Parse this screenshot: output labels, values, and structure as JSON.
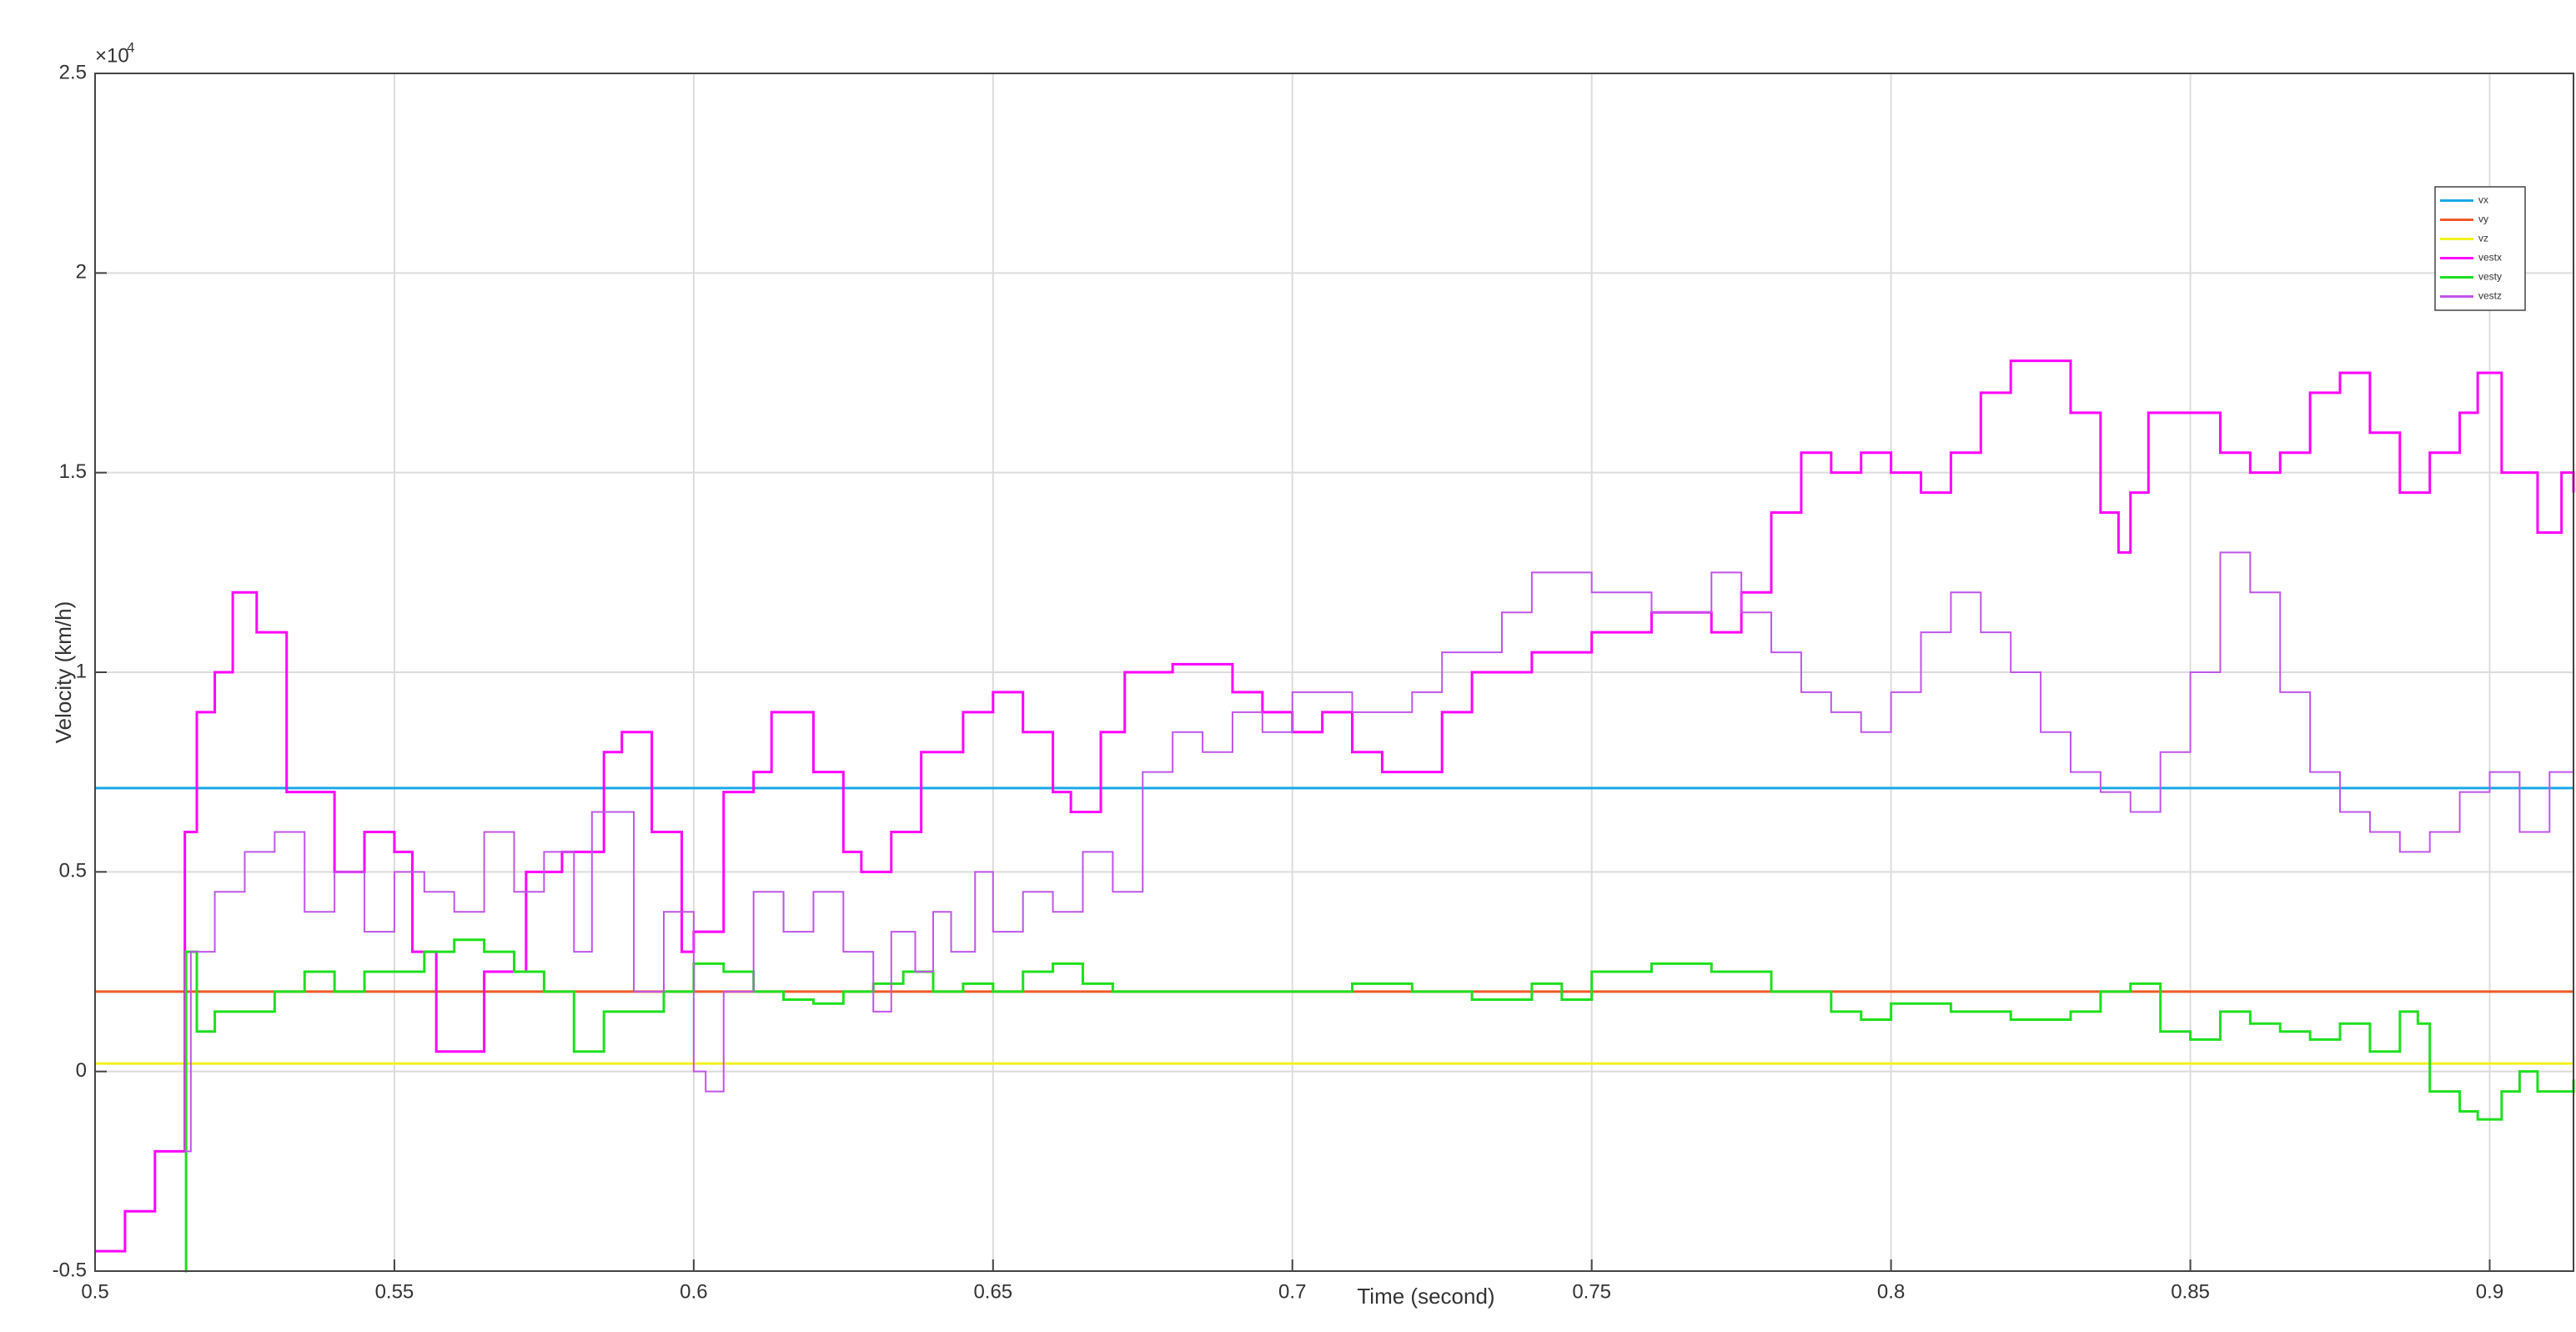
{
  "chart_data": {
    "type": "line",
    "stairs": true,
    "grid": true,
    "legend": "upper-right",
    "xlabel": "Time (second)",
    "ylabel": "Velocity (km/h)",
    "y_exponent_base": "×10",
    "y_exponent_power": 4,
    "xlim": [
      0.5,
      0.914
    ],
    "xticks": [
      0.5,
      0.55,
      0.6,
      0.65,
      0.7,
      0.75,
      0.8,
      0.85,
      0.9
    ],
    "ylim": [
      -0.5,
      2.5
    ],
    "yticks": [
      -0.5,
      0,
      0.5,
      1,
      1.5,
      2,
      2.5
    ],
    "series": [
      {
        "name": "vx",
        "color": "#1aa8e8",
        "width": 3,
        "x": [
          0.5,
          0.914
        ],
        "values": [
          0.71,
          0.71
        ]
      },
      {
        "name": "vy",
        "color": "#f05a28",
        "width": 3,
        "x": [
          0.5,
          0.914
        ],
        "values": [
          0.2,
          0.2
        ]
      },
      {
        "name": "vz",
        "color": "#f2f21e",
        "width": 3,
        "x": [
          0.5,
          0.914
        ],
        "values": [
          0.02,
          0.02
        ]
      },
      {
        "name": "vestx",
        "color": "#ff00ff",
        "width": 3,
        "x": [
          0.5,
          0.505,
          0.51,
          0.515,
          0.517,
          0.52,
          0.523,
          0.527,
          0.532,
          0.54,
          0.545,
          0.55,
          0.553,
          0.557,
          0.56,
          0.565,
          0.572,
          0.578,
          0.585,
          0.588,
          0.593,
          0.598,
          0.6,
          0.605,
          0.61,
          0.613,
          0.62,
          0.625,
          0.628,
          0.633,
          0.638,
          0.645,
          0.65,
          0.655,
          0.66,
          0.663,
          0.668,
          0.672,
          0.68,
          0.69,
          0.695,
          0.7,
          0.705,
          0.71,
          0.715,
          0.725,
          0.73,
          0.74,
          0.75,
          0.76,
          0.77,
          0.775,
          0.78,
          0.785,
          0.79,
          0.795,
          0.8,
          0.805,
          0.81,
          0.815,
          0.82,
          0.825,
          0.83,
          0.835,
          0.838,
          0.84,
          0.843,
          0.85,
          0.855,
          0.86,
          0.865,
          0.87,
          0.875,
          0.88,
          0.885,
          0.89,
          0.895,
          0.898,
          0.902,
          0.905,
          0.908,
          0.912,
          0.914
        ],
        "values": [
          -0.45,
          -0.35,
          -0.2,
          0.6,
          0.9,
          1.0,
          1.2,
          1.1,
          0.7,
          0.5,
          0.6,
          0.55,
          0.3,
          0.05,
          0.05,
          0.25,
          0.5,
          0.55,
          0.8,
          0.85,
          0.6,
          0.3,
          0.35,
          0.7,
          0.75,
          0.9,
          0.75,
          0.55,
          0.5,
          0.6,
          0.8,
          0.9,
          0.95,
          0.85,
          0.7,
          0.65,
          0.85,
          1.0,
          1.02,
          0.95,
          0.9,
          0.85,
          0.9,
          0.8,
          0.75,
          0.9,
          1.0,
          1.05,
          1.1,
          1.15,
          1.1,
          1.2,
          1.4,
          1.55,
          1.5,
          1.55,
          1.5,
          1.45,
          1.55,
          1.7,
          1.78,
          1.78,
          1.65,
          1.4,
          1.3,
          1.45,
          1.65,
          1.65,
          1.55,
          1.5,
          1.55,
          1.7,
          1.75,
          1.6,
          1.45,
          1.55,
          1.65,
          1.75,
          1.5,
          1.5,
          1.35,
          1.5,
          1.45
        ]
      },
      {
        "name": "vesty",
        "color": "#1ee01e",
        "width": 3,
        "x": [
          0.515,
          0.5152,
          0.517,
          0.52,
          0.525,
          0.53,
          0.535,
          0.54,
          0.545,
          0.55,
          0.555,
          0.56,
          0.565,
          0.57,
          0.575,
          0.58,
          0.585,
          0.59,
          0.595,
          0.6,
          0.605,
          0.61,
          0.615,
          0.62,
          0.625,
          0.63,
          0.635,
          0.64,
          0.645,
          0.65,
          0.655,
          0.66,
          0.665,
          0.67,
          0.7,
          0.71,
          0.72,
          0.73,
          0.74,
          0.745,
          0.75,
          0.76,
          0.77,
          0.78,
          0.79,
          0.795,
          0.8,
          0.81,
          0.82,
          0.83,
          0.835,
          0.84,
          0.845,
          0.85,
          0.855,
          0.86,
          0.865,
          0.87,
          0.875,
          0.88,
          0.885,
          0.888,
          0.89,
          0.895,
          0.898,
          0.902,
          0.905,
          0.908,
          0.914
        ],
        "values": [
          -0.5,
          0.3,
          0.1,
          0.15,
          0.15,
          0.2,
          0.25,
          0.2,
          0.25,
          0.25,
          0.3,
          0.33,
          0.3,
          0.25,
          0.2,
          0.05,
          0.15,
          0.15,
          0.2,
          0.27,
          0.25,
          0.2,
          0.18,
          0.17,
          0.2,
          0.22,
          0.25,
          0.2,
          0.22,
          0.2,
          0.25,
          0.27,
          0.22,
          0.2,
          0.2,
          0.22,
          0.2,
          0.18,
          0.22,
          0.18,
          0.25,
          0.27,
          0.25,
          0.2,
          0.15,
          0.13,
          0.17,
          0.15,
          0.13,
          0.15,
          0.2,
          0.22,
          0.1,
          0.08,
          0.15,
          0.12,
          0.1,
          0.08,
          0.12,
          0.05,
          0.15,
          0.12,
          -0.05,
          -0.1,
          -0.12,
          -0.05,
          0.0,
          -0.05,
          -0.02
        ]
      },
      {
        "name": "vestz",
        "color": "#c055e8",
        "width": 2,
        "x": [
          0.515,
          0.516,
          0.52,
          0.525,
          0.53,
          0.535,
          0.54,
          0.545,
          0.55,
          0.555,
          0.56,
          0.565,
          0.57,
          0.575,
          0.58,
          0.583,
          0.59,
          0.595,
          0.6,
          0.602,
          0.605,
          0.61,
          0.615,
          0.62,
          0.625,
          0.63,
          0.633,
          0.637,
          0.64,
          0.643,
          0.647,
          0.65,
          0.655,
          0.66,
          0.665,
          0.67,
          0.675,
          0.68,
          0.685,
          0.69,
          0.695,
          0.7,
          0.71,
          0.72,
          0.725,
          0.735,
          0.74,
          0.75,
          0.76,
          0.77,
          0.775,
          0.78,
          0.785,
          0.79,
          0.795,
          0.8,
          0.805,
          0.81,
          0.815,
          0.82,
          0.825,
          0.83,
          0.835,
          0.84,
          0.845,
          0.85,
          0.855,
          0.86,
          0.865,
          0.87,
          0.875,
          0.88,
          0.885,
          0.89,
          0.895,
          0.9,
          0.905,
          0.91,
          0.914
        ],
        "values": [
          -0.2,
          0.3,
          0.45,
          0.55,
          0.6,
          0.4,
          0.5,
          0.35,
          0.5,
          0.45,
          0.4,
          0.6,
          0.45,
          0.55,
          0.3,
          0.65,
          0.2,
          0.4,
          0.0,
          -0.05,
          0.2,
          0.45,
          0.35,
          0.45,
          0.3,
          0.15,
          0.35,
          0.25,
          0.4,
          0.3,
          0.5,
          0.35,
          0.45,
          0.4,
          0.55,
          0.45,
          0.75,
          0.85,
          0.8,
          0.9,
          0.85,
          0.95,
          0.9,
          0.95,
          1.05,
          1.15,
          1.25,
          1.2,
          1.15,
          1.25,
          1.15,
          1.05,
          0.95,
          0.9,
          0.85,
          0.95,
          1.1,
          1.2,
          1.1,
          1.0,
          0.85,
          0.75,
          0.7,
          0.65,
          0.8,
          1.0,
          1.3,
          1.2,
          0.95,
          0.75,
          0.65,
          0.6,
          0.55,
          0.6,
          0.7,
          0.75,
          0.6,
          0.75,
          0.65
        ]
      }
    ]
  }
}
